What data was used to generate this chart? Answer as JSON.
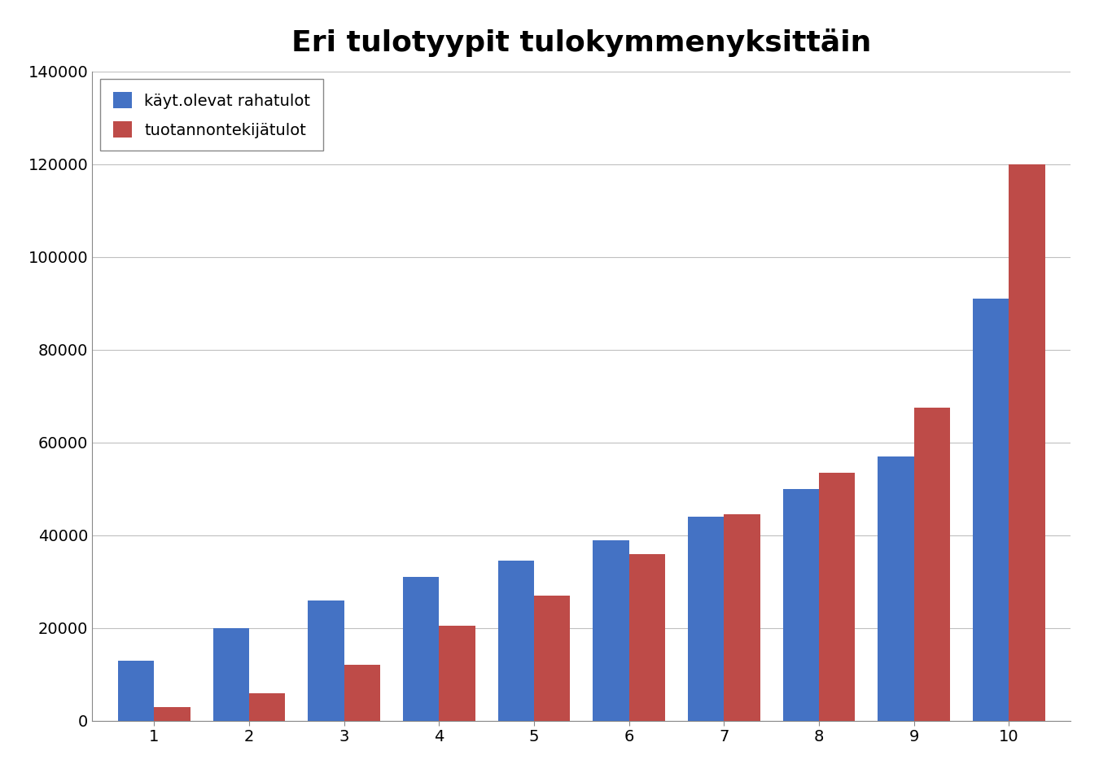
{
  "title": "Eri tulotyypit tulokymmenyksittäin",
  "categories": [
    1,
    2,
    3,
    4,
    5,
    6,
    7,
    8,
    9,
    10
  ],
  "blue_values": [
    13000,
    20000,
    26000,
    31000,
    34500,
    39000,
    44000,
    50000,
    57000,
    91000
  ],
  "red_values": [
    3000,
    6000,
    12000,
    20500,
    27000,
    36000,
    44500,
    53500,
    67500,
    120000
  ],
  "blue_color": "#4472C4",
  "red_color": "#BE4B48",
  "legend_blue": "käyt.olevat rahatulot",
  "legend_red": "tuotannontekijätulot",
  "ylim": [
    0,
    140000
  ],
  "yticks": [
    0,
    20000,
    40000,
    60000,
    80000,
    100000,
    120000,
    140000
  ],
  "background_color": "#ffffff",
  "plot_background": "#ffffff",
  "grid_color": "#c0c0c0",
  "title_fontsize": 26,
  "legend_fontsize": 14,
  "tick_fontsize": 14,
  "bar_width": 0.38,
  "spine_color": "#888888"
}
